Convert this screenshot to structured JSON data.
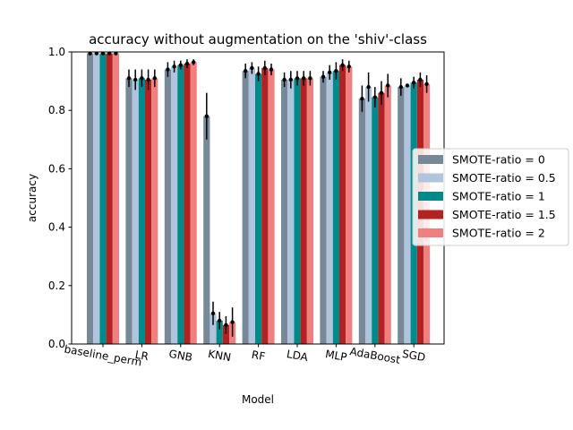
{
  "chart_data": {
    "type": "bar",
    "title": "accuracy without augmentation on the 'shiv'-class",
    "xlabel": "Model",
    "ylabel": "accuracy",
    "ylim": [
      0,
      1
    ],
    "yticks": [
      "0.0",
      "0.2",
      "0.4",
      "0.6",
      "0.8",
      "1.0"
    ],
    "categories": [
      "baseline_perm",
      "LR",
      "GNB",
      "KNN",
      "RF",
      "LDA",
      "MLP",
      "AdaBoost",
      "SGD"
    ],
    "legend_position": "right",
    "grid": false,
    "series": [
      {
        "name": "SMOTE-ratio = 0",
        "color": "#778899",
        "values": [
          0.995,
          0.91,
          0.94,
          0.78,
          0.935,
          0.905,
          0.915,
          0.84,
          0.88
        ],
        "errors": [
          0.005,
          0.03,
          0.025,
          0.08,
          0.025,
          0.025,
          0.02,
          0.045,
          0.03
        ]
      },
      {
        "name": "SMOTE-ratio = 0.5",
        "color": "#b0c4de",
        "values": [
          0.995,
          0.905,
          0.95,
          0.105,
          0.945,
          0.905,
          0.93,
          0.88,
          0.885
        ],
        "errors": [
          0.005,
          0.035,
          0.02,
          0.04,
          0.02,
          0.03,
          0.025,
          0.05,
          0.005
        ]
      },
      {
        "name": "SMOTE-ratio = 1",
        "color": "#008b8b",
        "values": [
          0.995,
          0.91,
          0.955,
          0.08,
          0.925,
          0.91,
          0.935,
          0.845,
          0.895
        ],
        "errors": [
          0.005,
          0.03,
          0.015,
          0.03,
          0.025,
          0.025,
          0.03,
          0.035,
          0.02
        ]
      },
      {
        "name": "SMOTE-ratio = 1.5",
        "color": "#b22222",
        "values": [
          0.995,
          0.905,
          0.96,
          0.065,
          0.945,
          0.91,
          0.955,
          0.86,
          0.905
        ],
        "errors": [
          0.005,
          0.035,
          0.015,
          0.03,
          0.025,
          0.025,
          0.02,
          0.04,
          0.025
        ]
      },
      {
        "name": "SMOTE-ratio = 2",
        "color": "#f08080",
        "values": [
          0.995,
          0.91,
          0.965,
          0.075,
          0.94,
          0.91,
          0.95,
          0.885,
          0.89
        ],
        "errors": [
          0.005,
          0.03,
          0.01,
          0.05,
          0.02,
          0.025,
          0.02,
          0.04,
          0.03
        ]
      }
    ]
  }
}
